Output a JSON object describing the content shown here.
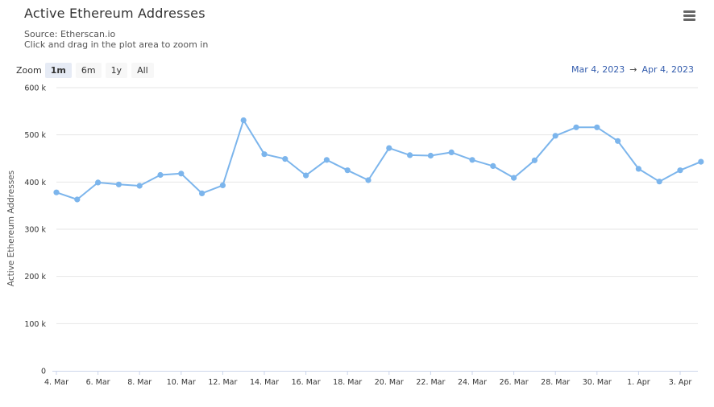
{
  "chart": {
    "title": "Active Ethereum Addresses",
    "subtitle_line1": "Source: Etherscan.io",
    "subtitle_line2": "Click and drag in the plot area to zoom in"
  },
  "range_selector": {
    "zoom_label": "Zoom",
    "buttons": [
      "1m",
      "6m",
      "1y",
      "All"
    ],
    "selected": "1m",
    "from_date": "Mar 4, 2023",
    "arrow": "→",
    "to_date": "Apr 4, 2023"
  },
  "colors": {
    "series": "#7cb5ec",
    "grid": "#e6e6e6",
    "axis": "#ccd6eb",
    "range_text": "#335cad"
  },
  "icons": {
    "menu": "hamburger-menu-icon"
  },
  "chart_data": {
    "type": "line",
    "title": "Active Ethereum Addresses",
    "subtitle": "Source: Etherscan.io",
    "ylabel": "Active Ethereum Addresses",
    "xlabel": "",
    "ylim": [
      0,
      600000
    ],
    "yticks": [
      "0",
      "100 k",
      "200 k",
      "300 k",
      "400 k",
      "500 k",
      "600 k"
    ],
    "xtick_labels": [
      "4. Mar",
      "6. Mar",
      "8. Mar",
      "10. Mar",
      "12. Mar",
      "14. Mar",
      "16. Mar",
      "18. Mar",
      "20. Mar",
      "22. Mar",
      "24. Mar",
      "26. Mar",
      "28. Mar",
      "30. Mar",
      "1. Apr",
      "3. Apr"
    ],
    "grid": true,
    "legend": "none",
    "x": [
      "2023-03-04",
      "2023-03-05",
      "2023-03-06",
      "2023-03-07",
      "2023-03-08",
      "2023-03-09",
      "2023-03-10",
      "2023-03-11",
      "2023-03-12",
      "2023-03-13",
      "2023-03-14",
      "2023-03-15",
      "2023-03-16",
      "2023-03-17",
      "2023-03-18",
      "2023-03-19",
      "2023-03-20",
      "2023-03-21",
      "2023-03-22",
      "2023-03-23",
      "2023-03-24",
      "2023-03-25",
      "2023-03-26",
      "2023-03-27",
      "2023-03-28",
      "2023-03-29",
      "2023-03-30",
      "2023-03-31",
      "2023-04-01",
      "2023-04-02",
      "2023-04-03",
      "2023-04-04"
    ],
    "series": [
      {
        "values": [
          378000,
          363000,
          399000,
          395000,
          392000,
          415000,
          418000,
          376000,
          393000,
          531000,
          459000,
          449000,
          414000,
          447000,
          425000,
          404000,
          472000,
          457000,
          456000,
          463000,
          447000,
          434000,
          409000,
          446000,
          498000,
          516000,
          516000,
          487000,
          428000,
          401000,
          425000,
          443000
        ]
      }
    ]
  }
}
